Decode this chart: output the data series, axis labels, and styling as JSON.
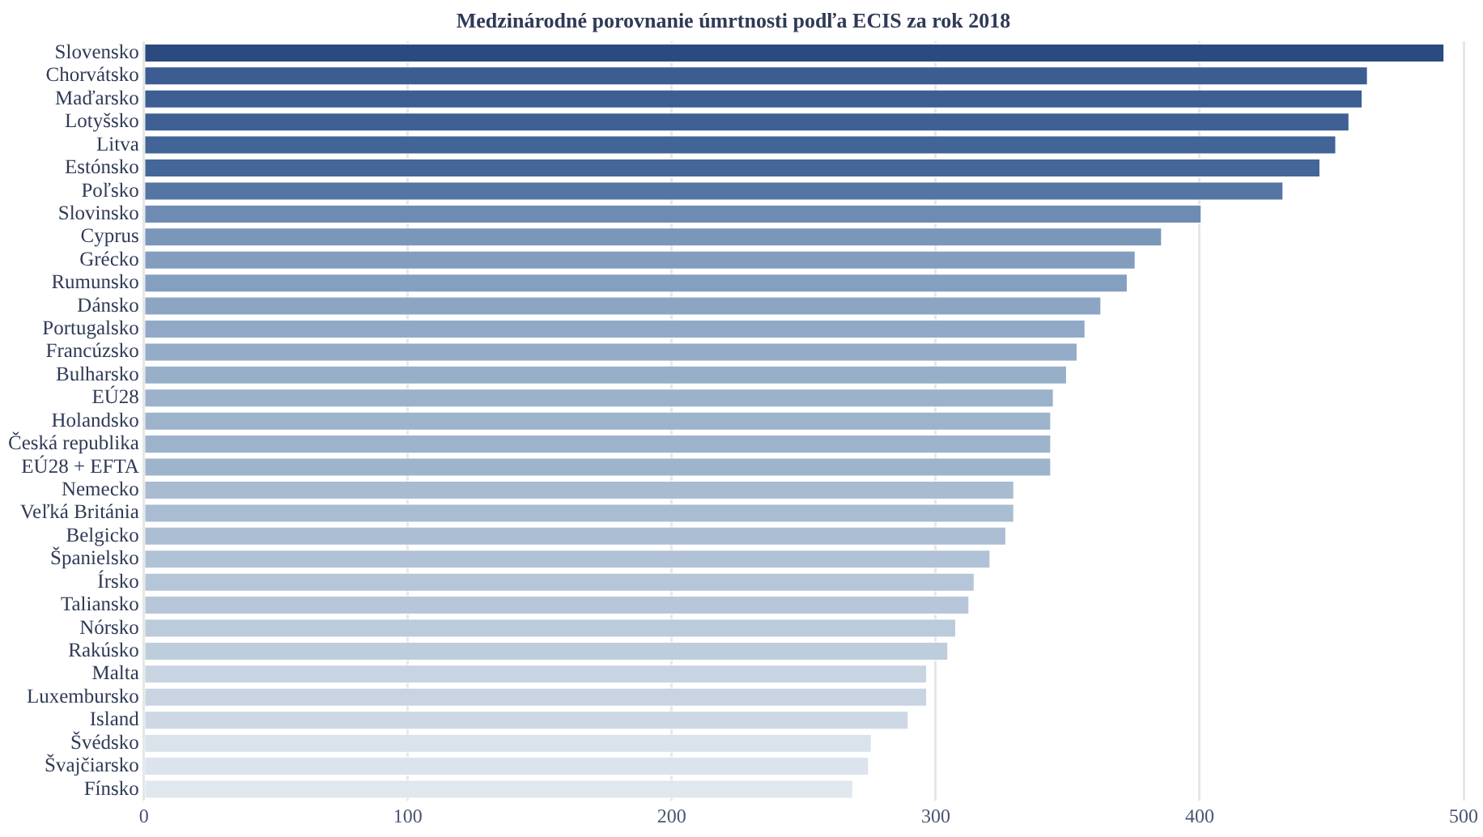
{
  "chart_data": {
    "type": "bar",
    "orientation": "horizontal",
    "title": "Medzinárodné porovnanie úmrtnosti podľa ECIS za rok 2018",
    "categories": [
      "Slovensko",
      "Chorvátsko",
      "Maďarsko",
      "Lotyšsko",
      "Litva",
      "Estónsko",
      "Poľsko",
      "Slovinsko",
      "Cyprus",
      "Grécko",
      "Rumunsko",
      "Dánsko",
      "Portugalsko",
      "Francúzsko",
      "Bulharsko",
      "EÚ28",
      "Holandsko",
      "Česká republika",
      "EÚ28 + EFTA",
      "Nemecko",
      "Veľká Británia",
      "Belgicko",
      "Španielsko",
      "Írsko",
      "Taliansko",
      "Nórsko",
      "Rakúsko",
      "Malta",
      "Luxembursko",
      "Island",
      "Švédsko",
      "Švajčiarsko",
      "Fínsko"
    ],
    "values": [
      493,
      464,
      462,
      457,
      452,
      446,
      432,
      401,
      386,
      376,
      373,
      363,
      357,
      354,
      350,
      345,
      344,
      344,
      344,
      330,
      330,
      327,
      321,
      315,
      313,
      308,
      305,
      297,
      297,
      290,
      276,
      275,
      269
    ],
    "colors": [
      "#2b4a7f",
      "#3b5d91",
      "#3c5e92",
      "#3e6094",
      "#426496",
      "#446698",
      "#5576a4",
      "#6e8cb3",
      "#7a97ba",
      "#829dbe",
      "#849fbf",
      "#8ca5c3",
      "#91a9c6",
      "#94acc7",
      "#98afc9",
      "#9cb2cb",
      "#9db3cc",
      "#9db3cc",
      "#9eb4cc",
      "#a8bbd1",
      "#a9bcd2",
      "#abbed3",
      "#b0c2d5",
      "#b5c6d8",
      "#b7c7d9",
      "#bccbdb",
      "#becddc",
      "#c8d4e2",
      "#c8d4e2",
      "#cdd8e4",
      "#dae2ec",
      "#dbe3ec",
      "#e1e7ef"
    ],
    "xlim": [
      0,
      500
    ],
    "xticks": [
      0,
      100,
      200,
      300,
      400,
      500
    ],
    "grid": "x",
    "legend": false
  }
}
